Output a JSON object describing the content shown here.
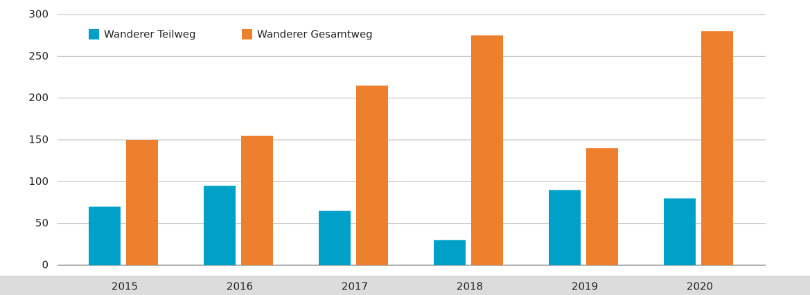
{
  "chart_data": {
    "type": "bar",
    "categories": [
      "2015",
      "2016",
      "2017",
      "2018",
      "2019",
      "2020"
    ],
    "series": [
      {
        "name": "Wanderer Teilweg",
        "color": "#00a0c8",
        "values": [
          70,
          95,
          65,
          30,
          90,
          80
        ]
      },
      {
        "name": "Wanderer Gesamtweg",
        "color": "#ee7f2d",
        "values": [
          150,
          155,
          215,
          275,
          140,
          280
        ]
      }
    ],
    "ylim": [
      0,
      300
    ],
    "yticks": [
      0,
      50,
      100,
      150,
      200,
      250,
      300
    ],
    "grid": true,
    "legend": "top-left"
  }
}
